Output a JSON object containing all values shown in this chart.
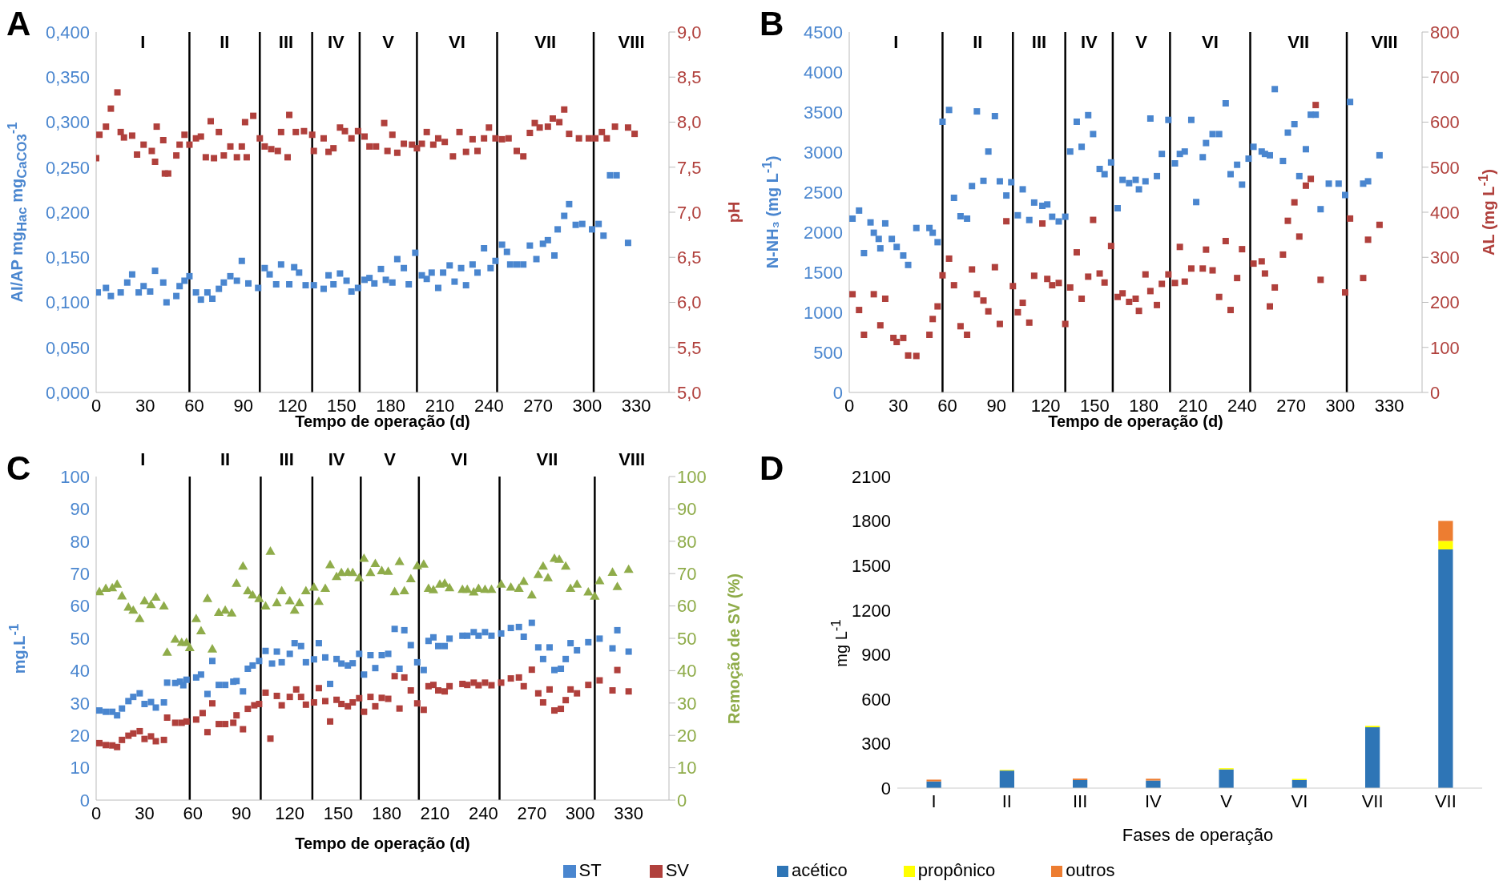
{
  "chart_data": [
    {
      "type": "scatter",
      "title": "A",
      "xlabel": "Tempo de operação (d)",
      "ylabel": "AI/AP mg$_{Hac}$ mg$_{CaCO3}$$^{-1}$",
      "y2label": "pH",
      "marker": "square",
      "grid": false,
      "legend": false,
      "xlim": [
        0,
        350
      ],
      "xticks": [
        0,
        30,
        60,
        90,
        120,
        150,
        180,
        210,
        240,
        270,
        300,
        330
      ],
      "ylim": [
        0,
        0.4
      ],
      "yticks": [
        {
          "value": 0,
          "label": "0,000"
        },
        {
          "value": 0.05,
          "label": "0,050"
        },
        {
          "value": 0.1,
          "label": "0,100"
        },
        {
          "value": 0.15,
          "label": "0,150"
        },
        {
          "value": 0.2,
          "label": "0,200"
        },
        {
          "value": 0.25,
          "label": "0,250"
        },
        {
          "value": 0.3,
          "label": "0,300"
        },
        {
          "value": 0.35,
          "label": "0,350"
        },
        {
          "value": 0.4,
          "label": "0,400"
        }
      ],
      "y2lim": [
        5,
        9
      ],
      "y2ticks": [
        {
          "value": 5,
          "label": "5,0"
        },
        {
          "value": 5.5,
          "label": "5,5"
        },
        {
          "value": 6,
          "label": "6,0"
        },
        {
          "value": 6.5,
          "label": "6,5"
        },
        {
          "value": 7,
          "label": "7,0"
        },
        {
          "value": 7.5,
          "label": "7,5"
        },
        {
          "value": 8,
          "label": "8,0"
        },
        {
          "value": 8.5,
          "label": "8,5"
        },
        {
          "value": 9,
          "label": "9,0"
        }
      ],
      "ref_lines": [
        {
          "axis": "x",
          "value": 57
        },
        {
          "axis": "x",
          "value": 100
        },
        {
          "axis": "x",
          "value": 132
        },
        {
          "axis": "x",
          "value": 161
        },
        {
          "axis": "x",
          "value": 196
        },
        {
          "axis": "x",
          "value": 245
        },
        {
          "axis": "x",
          "value": 304
        }
      ],
      "annotations": [
        "I",
        "II",
        "III",
        "IV",
        "V",
        "VI",
        "VII",
        "VIII"
      ],
      "series": [
        {
          "color": "#4a86cf",
          "x": [
            1,
            6,
            9,
            15,
            19,
            22,
            26,
            29,
            33,
            36,
            41,
            43,
            49,
            51,
            54,
            57,
            61,
            64,
            68,
            71,
            75,
            78,
            82,
            86,
            89,
            93,
            99,
            103,
            106,
            110,
            113,
            118,
            121,
            124,
            128,
            133,
            139,
            142,
            145,
            149,
            153,
            156,
            160,
            164,
            167,
            170,
            174,
            177,
            181,
            184,
            188,
            191,
            195,
            199,
            202,
            205,
            209,
            212,
            216,
            219,
            223,
            226,
            230,
            233,
            237,
            241,
            244,
            248,
            251,
            253,
            257,
            261,
            265,
            269,
            273,
            276,
            280,
            282,
            286,
            289,
            293,
            297,
            303,
            307,
            310,
            314,
            318,
            325
          ],
          "values": [
            0.111,
            0.116,
            0.107,
            0.111,
            0.122,
            0.131,
            0.111,
            0.118,
            0.112,
            0.135,
            0.122,
            0.1,
            0.107,
            0.118,
            0.124,
            0.129,
            0.111,
            0.103,
            0.111,
            0.104,
            0.115,
            0.122,
            0.129,
            0.124,
            0.146,
            0.121,
            0.116,
            0.138,
            0.131,
            0.12,
            0.142,
            0.12,
            0.139,
            0.133,
            0.119,
            0.119,
            0.115,
            0.13,
            0.12,
            0.132,
            0.124,
            0.112,
            0.116,
            0.125,
            0.127,
            0.121,
            0.137,
            0.125,
            0.122,
            0.148,
            0.138,
            0.12,
            0.155,
            0.13,
            0.126,
            0.133,
            0.116,
            0.133,
            0.141,
            0.123,
            0.138,
            0.119,
            0.142,
            0.133,
            0.16,
            0.138,
            0.146,
            0.164,
            0.156,
            0.142,
            0.142,
            0.142,
            0.163,
            0.148,
            0.165,
            0.169,
            0.152,
            0.181,
            0.196,
            0.209,
            0.186,
            0.187,
            0.181,
            0.187,
            0.174,
            0.241,
            0.241,
            0.166
          ]
        },
        {
          "color": "#b0403c",
          "axis": "y2",
          "x": [
            0,
            2,
            6,
            9,
            13,
            15,
            17,
            22,
            25,
            29,
            34,
            36,
            37,
            41,
            42,
            44,
            49,
            51,
            54,
            57,
            61,
            64,
            67,
            70,
            72,
            75,
            78,
            82,
            86,
            89,
            91,
            92,
            96,
            100,
            103,
            107,
            111,
            113,
            117,
            118,
            122,
            127,
            132,
            133,
            139,
            142,
            145,
            149,
            152,
            156,
            160,
            164,
            167,
            171,
            176,
            178,
            181,
            184,
            188,
            193,
            196,
            199,
            202,
            206,
            209,
            213,
            218,
            222,
            226,
            230,
            233,
            237,
            240,
            244,
            248,
            252,
            257,
            261,
            265,
            268,
            271,
            276,
            279,
            283,
            286,
            289,
            295,
            301,
            305,
            309,
            312,
            317,
            325,
            329
          ],
          "values": [
            7.6,
            7.86,
            7.95,
            8.15,
            8.33,
            7.89,
            7.83,
            7.85,
            7.64,
            7.75,
            7.68,
            7.56,
            7.95,
            7.8,
            7.43,
            7.43,
            7.63,
            7.75,
            7.86,
            7.75,
            7.82,
            7.84,
            7.61,
            8.01,
            7.6,
            7.89,
            7.63,
            7.73,
            7.61,
            7.73,
            8.0,
            7.61,
            8.07,
            7.82,
            7.73,
            7.7,
            7.68,
            7.89,
            7.61,
            8.08,
            7.89,
            7.9,
            7.86,
            7.68,
            7.82,
            7.67,
            7.71,
            7.94,
            7.9,
            7.82,
            7.9,
            7.84,
            7.73,
            7.73,
            7.99,
            7.68,
            7.86,
            7.66,
            7.76,
            7.75,
            7.71,
            7.76,
            7.89,
            7.75,
            7.82,
            7.78,
            7.62,
            7.89,
            7.67,
            7.81,
            7.68,
            7.82,
            7.94,
            7.82,
            7.81,
            7.82,
            7.68,
            7.62,
            7.88,
            7.99,
            7.94,
            7.95,
            8.04,
            8.0,
            8.14,
            7.87,
            7.82,
            7.82,
            7.82,
            7.89,
            7.82,
            7.95,
            7.94,
            7.87
          ]
        }
      ]
    },
    {
      "type": "scatter",
      "title": "B",
      "xlabel": "Tempo de operação (d)",
      "ylabel": "N-NH₃ (mg L$^{-1}$)",
      "y2label": "AL (mg L$^{-1}$)",
      "marker": "square",
      "grid": false,
      "legend": false,
      "xlim": [
        0,
        350
      ],
      "xticks": [
        0,
        30,
        60,
        90,
        120,
        150,
        180,
        210,
        240,
        270,
        300,
        330
      ],
      "ylim": [
        0,
        4500
      ],
      "yticks": [
        0,
        500,
        1000,
        1500,
        2000,
        2500,
        3000,
        3500,
        4000,
        4500
      ],
      "y2lim": [
        0,
        800
      ],
      "y2ticks": [
        0,
        100,
        200,
        300,
        400,
        500,
        600,
        700,
        800
      ],
      "ref_lines": [
        {
          "axis": "x",
          "value": 57
        },
        {
          "axis": "x",
          "value": 100
        },
        {
          "axis": "x",
          "value": 132
        },
        {
          "axis": "x",
          "value": 161
        },
        {
          "axis": "x",
          "value": 196
        },
        {
          "axis": "x",
          "value": 245
        },
        {
          "axis": "x",
          "value": 304
        }
      ],
      "annotations": [
        "I",
        "II",
        "III",
        "IV",
        "V",
        "VI",
        "VII",
        "VIII"
      ],
      "series": [
        {
          "color": "#4a86cf",
          "x": [
            2,
            6,
            9,
            13,
            15,
            18,
            19,
            22,
            26,
            29,
            33,
            36,
            41,
            49,
            51,
            54,
            57,
            61,
            64,
            68,
            72,
            75,
            78,
            82,
            85,
            89,
            92,
            96,
            99,
            103,
            106,
            110,
            113,
            118,
            121,
            124,
            128,
            132,
            135,
            139,
            142,
            146,
            149,
            153,
            156,
            160,
            164,
            167,
            171,
            175,
            177,
            181,
            184,
            188,
            191,
            195,
            199,
            202,
            205,
            209,
            212,
            216,
            218,
            222,
            226,
            230,
            233,
            237,
            240,
            244,
            247,
            252,
            254,
            257,
            260,
            265,
            268,
            272,
            275,
            279,
            282,
            285,
            288,
            293,
            299,
            303,
            306,
            314,
            317,
            324
          ],
          "values": [
            2170,
            2271,
            1740,
            2123,
            1994,
            1917,
            1799,
            2111,
            1917,
            1817,
            1710,
            1592,
            2053,
            2053,
            1994,
            1876,
            3380,
            3527,
            2430,
            2200,
            2170,
            2577,
            3509,
            2642,
            3008,
            3450,
            2636,
            2459,
            2625,
            2212,
            2536,
            2153,
            2371,
            2330,
            2347,
            2194,
            2135,
            2194,
            3008,
            3380,
            3067,
            3462,
            3226,
            2790,
            2725,
            2872,
            2300,
            2654,
            2613,
            2654,
            2536,
            2636,
            3420,
            2701,
            2978,
            3403,
            2860,
            2978,
            3008,
            3403,
            2377,
            2937,
            3114,
            3226,
            3226,
            3610,
            2725,
            2843,
            2595,
            2919,
            3067,
            3008,
            2978,
            2961,
            3787,
            2890,
            3244,
            3350,
            2701,
            3037,
            3468,
            3468,
            2288,
            2607,
            2607,
            2465,
            3627,
            2607,
            2636,
            2961
          ]
        },
        {
          "color": "#b0403c",
          "axis": "y2",
          "x": [
            2,
            6,
            9,
            15,
            19,
            22,
            27,
            29,
            33,
            36,
            41,
            49,
            51,
            54,
            57,
            61,
            64,
            68,
            72,
            75,
            78,
            82,
            85,
            89,
            92,
            96,
            100,
            103,
            106,
            110,
            113,
            118,
            121,
            124,
            128,
            132,
            135,
            139,
            142,
            146,
            149,
            153,
            156,
            160,
            164,
            167,
            171,
            175,
            177,
            181,
            184,
            188,
            191,
            195,
            199,
            202,
            205,
            209,
            216,
            218,
            222,
            226,
            230,
            233,
            237,
            240,
            247,
            252,
            254,
            257,
            260,
            265,
            268,
            272,
            275,
            279,
            282,
            285,
            288,
            303,
            306,
            314,
            317,
            324
          ],
          "values": [
            218,
            183,
            128,
            218,
            149,
            208,
            121,
            112,
            121,
            82,
            81,
            128,
            163,
            191,
            260,
            297,
            238,
            147,
            128,
            273,
            218,
            204,
            180,
            278,
            152,
            380,
            236,
            178,
            199,
            155,
            259,
            375,
            252,
            238,
            243,
            152,
            233,
            311,
            208,
            257,
            383,
            264,
            244,
            325,
            212,
            220,
            201,
            208,
            181,
            262,
            225,
            194,
            241,
            262,
            243,
            323,
            246,
            275,
            275,
            317,
            271,
            212,
            336,
            183,
            254,
            318,
            286,
            291,
            264,
            191,
            233,
            306,
            381,
            422,
            346,
            459,
            474,
            638,
            250,
            222,
            386,
            254,
            339,
            372
          ]
        }
      ]
    },
    {
      "type": "scatter",
      "title": "C",
      "xlabel": "Tempo de operação (d)",
      "ylabel": "mg.L$^{-1}$",
      "y2label": "Remoção de SV (%)",
      "grid": false,
      "legend": "bottom right",
      "xlim": [
        0,
        355
      ],
      "xticks": [
        0,
        30,
        60,
        90,
        120,
        150,
        180,
        210,
        240,
        270,
        300,
        330
      ],
      "ylim": [
        0,
        100
      ],
      "yticks": [
        0,
        10,
        20,
        30,
        40,
        50,
        60,
        70,
        80,
        90,
        100
      ],
      "y2lim": [
        0,
        100
      ],
      "y2ticks": [
        0,
        10,
        20,
        30,
        40,
        50,
        60,
        70,
        80,
        90,
        100
      ],
      "ref_lines": [
        {
          "axis": "x",
          "value": 58
        },
        {
          "axis": "x",
          "value": 102
        },
        {
          "axis": "x",
          "value": 134
        },
        {
          "axis": "x",
          "value": 164
        },
        {
          "axis": "x",
          "value": 200
        },
        {
          "axis": "x",
          "value": 250
        },
        {
          "axis": "x",
          "value": 309
        }
      ],
      "annotations": [
        "I",
        "II",
        "III",
        "IV",
        "V",
        "VI",
        "VII",
        "VIII"
      ],
      "series": [
        {
          "name": "ST",
          "color": "#4a86cf",
          "marker": "square",
          "x": [
            2,
            6,
            10,
            13,
            16,
            20,
            23,
            27,
            30,
            34,
            37,
            42,
            44,
            49,
            52,
            54,
            56,
            62,
            65,
            69,
            72,
            76,
            80,
            85,
            87,
            91,
            94,
            97,
            101,
            105,
            109,
            112,
            115,
            120,
            123,
            127,
            130,
            135,
            138,
            142,
            145,
            149,
            152,
            156,
            159,
            163,
            166,
            170,
            173,
            177,
            181,
            185,
            188,
            191,
            195,
            199,
            203,
            206,
            209,
            212,
            216,
            219,
            227,
            230,
            234,
            237,
            241,
            245,
            251,
            257,
            262,
            265,
            270,
            274,
            277,
            281,
            284,
            288,
            291,
            294,
            298,
            305,
            312,
            320,
            323,
            330
          ],
          "values": [
            27.7,
            27.3,
            27.3,
            26.2,
            28.3,
            30.6,
            31.9,
            33.0,
            29.7,
            30.3,
            28.6,
            30.2,
            36.3,
            36.2,
            36.6,
            35.5,
            37.2,
            37.9,
            38.8,
            32.8,
            43.0,
            35.6,
            35.6,
            36.6,
            36.8,
            33.6,
            40.6,
            41.6,
            43.0,
            46.1,
            42.2,
            45.9,
            42.6,
            45.2,
            48.5,
            47.6,
            42.6,
            43.5,
            48.5,
            44.1,
            35.9,
            43.6,
            42.2,
            41.6,
            42.3,
            45.2,
            38.8,
            44.8,
            40.8,
            44.8,
            45.2,
            52.9,
            40.6,
            52.5,
            47.9,
            42.6,
            40.2,
            49.2,
            50.3,
            47.6,
            47.6,
            49.9,
            50.8,
            50.8,
            51.9,
            50.8,
            51.9,
            50.8,
            51.5,
            53.2,
            53.5,
            50.5,
            54.8,
            47.2,
            43.6,
            47.2,
            40.2,
            40.6,
            43.6,
            48.5,
            46.3,
            48.8,
            49.9,
            46.9,
            52.5,
            45.9
          ]
        },
        {
          "name": "SV",
          "color": "#b0403c",
          "marker": "square",
          "x": [
            2,
            6,
            10,
            13,
            16,
            20,
            23,
            27,
            30,
            34,
            37,
            42,
            44,
            49,
            53,
            56,
            62,
            66,
            69,
            72,
            76,
            80,
            85,
            87,
            91,
            94,
            98,
            101,
            105,
            108,
            112,
            115,
            120,
            124,
            127,
            130,
            135,
            138,
            142,
            145,
            149,
            152,
            156,
            159,
            163,
            166,
            170,
            173,
            177,
            181,
            185,
            188,
            191,
            195,
            199,
            203,
            206,
            209,
            212,
            216,
            219,
            227,
            230,
            234,
            237,
            241,
            245,
            251,
            257,
            262,
            265,
            270,
            274,
            277,
            281,
            284,
            288,
            291,
            294,
            298,
            305,
            312,
            320,
            323,
            330
          ],
          "values": [
            17.6,
            17.0,
            16.9,
            16.4,
            18.6,
            19.9,
            20.6,
            21.3,
            18.9,
            19.7,
            18.2,
            18.6,
            25.5,
            23.9,
            23.9,
            24.3,
            24.9,
            26.9,
            21.0,
            29.9,
            23.5,
            23.5,
            23.9,
            26.2,
            21.9,
            28.2,
            29.3,
            29.7,
            33.2,
            19.0,
            32.2,
            29.3,
            31.9,
            34.2,
            31.9,
            29.5,
            30.2,
            34.6,
            30.6,
            24.3,
            31.0,
            29.7,
            29.0,
            30.2,
            31.5,
            27.3,
            31.9,
            29.0,
            31.6,
            31.3,
            38.3,
            28.3,
            37.9,
            33.9,
            29.9,
            27.9,
            35.2,
            35.6,
            33.9,
            33.6,
            35.2,
            35.9,
            35.6,
            36.3,
            35.5,
            36.3,
            35.5,
            36.3,
            37.6,
            37.9,
            35.2,
            40.3,
            33.0,
            30.2,
            34.2,
            27.7,
            28.2,
            30.9,
            34.2,
            33.0,
            35.6,
            37.0,
            33.9,
            40.2,
            33.6
          ]
        },
        {
          "color": "#8fac4a",
          "axis": "y2",
          "marker": "triangle",
          "x": [
            2,
            6,
            10,
            13,
            16,
            20,
            23,
            27,
            30,
            34,
            37,
            42,
            44,
            49,
            53,
            56,
            58,
            62,
            65,
            69,
            72,
            76,
            80,
            84,
            87,
            91,
            94,
            97,
            101,
            105,
            108,
            112,
            115,
            120,
            123,
            126,
            130,
            135,
            138,
            142,
            145,
            149,
            152,
            156,
            159,
            163,
            166,
            170,
            173,
            177,
            181,
            185,
            188,
            191,
            195,
            199,
            203,
            206,
            209,
            213,
            216,
            219,
            227,
            230,
            234,
            237,
            241,
            245,
            251,
            257,
            262,
            265,
            270,
            274,
            277,
            280,
            284,
            287,
            291,
            294,
            298,
            305,
            309,
            312,
            320,
            323,
            330
          ],
          "values": [
            64.2,
            65.2,
            65.4,
            66.5,
            62.9,
            59.4,
            58.5,
            55.9,
            61.4,
            60.2,
            62.5,
            59.8,
            45.5,
            49.5,
            48.5,
            48.5,
            46.9,
            55.9,
            52.1,
            62.1,
            46.5,
            57.8,
            58.5,
            57.6,
            66.8,
            72.1,
            64.5,
            63.2,
            62.1,
            59.8,
            76.7,
            60.8,
            64.5,
            61.4,
            58.5,
            60.8,
            64.5,
            65.6,
            61.2,
            65.2,
            72.5,
            68.9,
            70.1,
            70.2,
            70.1,
            68.5,
            74.5,
            70.1,
            72.9,
            70.7,
            70.5,
            64.2,
            73.5,
            64.5,
            68.2,
            72.2,
            72.7,
            65.2,
            64.8,
            66.5,
            66.8,
            65.4,
            64.9,
            64.9,
            64.1,
            65.2,
            64.9,
            64.9,
            66.5,
            65.6,
            65.2,
            67.4,
            63.2,
            69.5,
            72.1,
            68.5,
            74.5,
            74.2,
            72.1,
            65.2,
            66.5,
            64.1,
            62.8,
            67.6,
            70.2,
            65.8,
            71.1
          ]
        }
      ]
    },
    {
      "type": "bar",
      "title": "D",
      "xlabel": "Fases de operação",
      "ylabel": "mg L$^{-1}$",
      "stacked": true,
      "grid": false,
      "legend": "bottom left",
      "categories": [
        "I",
        "II",
        "III",
        "IV",
        "V",
        "VI",
        "VII",
        "VII"
      ],
      "ylim": [
        0,
        2100
      ],
      "yticks": [
        0,
        300,
        600,
        900,
        1200,
        1500,
        1800,
        2100
      ],
      "series": [
        {
          "name": "acético",
          "color": "#2e75b6",
          "values": [
            45,
            118,
            54,
            51,
            126,
            54,
            410,
            1609
          ]
        },
        {
          "name": "propônico",
          "color": "#ffff00",
          "values": [
            null,
            5,
            null,
            null,
            8,
            8,
            10,
            57
          ]
        },
        {
          "name": "outros",
          "color": "#ed7d31",
          "values": [
            12,
            0,
            10,
            12,
            0,
            0,
            0,
            135
          ]
        }
      ]
    }
  ]
}
